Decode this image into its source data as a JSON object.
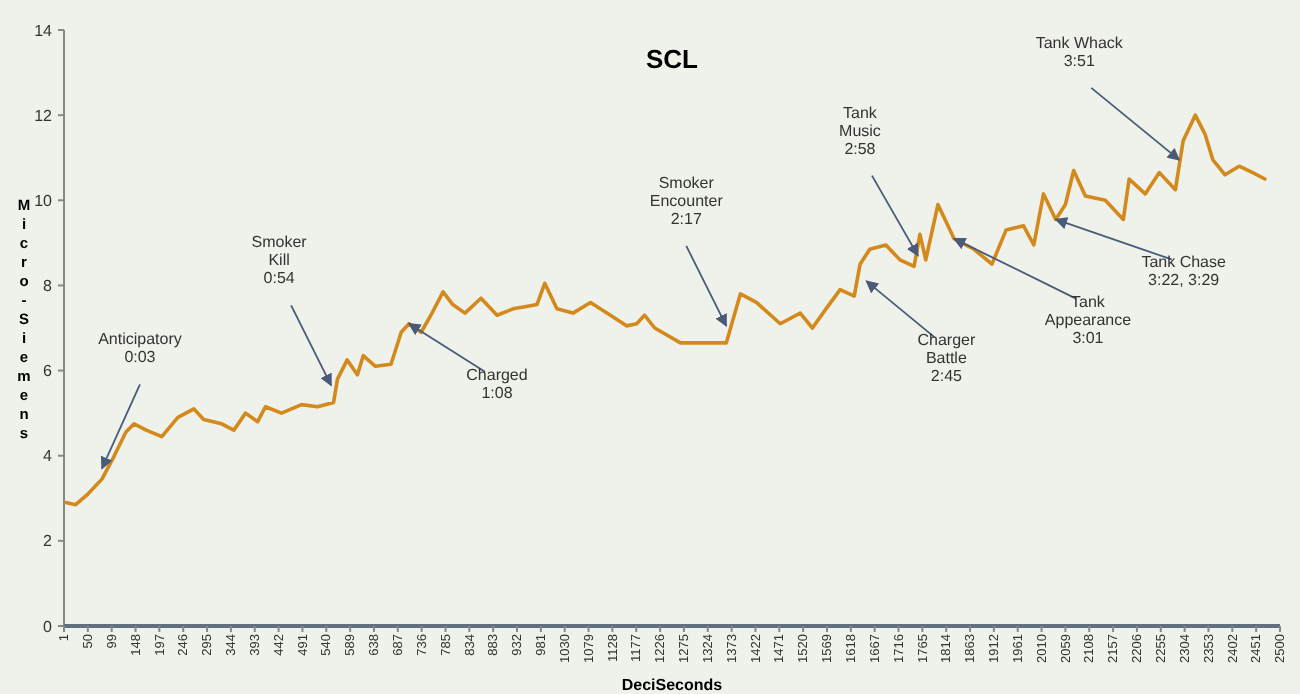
{
  "chart_data": {
    "type": "line",
    "title": "SCL",
    "xlabel": "DeciSeconds",
    "ylabel": "Micro-Siemens",
    "xlim": [
      1,
      2500
    ],
    "xticks": [
      1,
      50,
      99,
      148,
      197,
      246,
      295,
      344,
      393,
      442,
      491,
      540,
      589,
      638,
      687,
      736,
      785,
      834,
      883,
      932,
      981,
      1030,
      1079,
      1128,
      1177,
      1226,
      1275,
      1324,
      1373,
      1422,
      1471,
      1520,
      1569,
      1618,
      1667,
      1716,
      1765,
      1814,
      1863,
      1912,
      1961,
      2010,
      2059,
      2108,
      2157,
      2206,
      2255,
      2304,
      2353,
      2402,
      2451,
      2500
    ],
    "ylim": [
      0,
      14
    ],
    "yticks": [
      0,
      2,
      4,
      6,
      8,
      10,
      12,
      14
    ],
    "grid": false,
    "marker": "none",
    "line_style": "solid",
    "series": [
      {
        "color": "#d4891c",
        "x": [
          5,
          25,
          50,
          79,
          100,
          128,
          145,
          170,
          202,
          235,
          268,
          288,
          325,
          350,
          374,
          399,
          415,
          448,
          489,
          522,
          555,
          563,
          583,
          604,
          616,
          641,
          673,
          694,
          710,
          735,
          755,
          780,
          800,
          825,
          858,
          891,
          924,
          948,
          973,
          989,
          1014,
          1047,
          1083,
          1124,
          1157,
          1178,
          1194,
          1215,
          1268,
          1317,
          1362,
          1391,
          1424,
          1473,
          1514,
          1539,
          1567,
          1596,
          1625,
          1637,
          1657,
          1690,
          1719,
          1748,
          1760,
          1772,
          1797,
          1830,
          1871,
          1908,
          1937,
          1973,
          1994,
          2014,
          2039,
          2059,
          2076,
          2100,
          2141,
          2178,
          2190,
          2223,
          2252,
          2285,
          2301,
          2326,
          2346,
          2362,
          2387,
          2416,
          2444,
          2469
        ],
        "values": [
          2.9,
          2.85,
          3.1,
          3.45,
          3.9,
          4.55,
          4.75,
          4.6,
          4.45,
          4.9,
          5.1,
          4.85,
          4.75,
          4.6,
          5.0,
          4.8,
          5.15,
          5.0,
          5.2,
          5.15,
          5.25,
          5.8,
          6.25,
          5.9,
          6.35,
          6.1,
          6.15,
          6.9,
          7.1,
          6.9,
          7.3,
          7.85,
          7.55,
          7.35,
          7.7,
          7.3,
          7.45,
          7.5,
          7.55,
          8.05,
          7.45,
          7.35,
          7.6,
          7.3,
          7.05,
          7.1,
          7.3,
          7.0,
          6.65,
          6.65,
          6.65,
          7.8,
          7.6,
          7.1,
          7.35,
          7.0,
          7.45,
          7.9,
          7.75,
          8.5,
          8.85,
          8.95,
          8.6,
          8.45,
          9.2,
          8.6,
          9.9,
          9.1,
          8.85,
          8.5,
          9.3,
          9.4,
          8.95,
          10.15,
          9.55,
          9.9,
          10.7,
          10.1,
          10.0,
          9.55,
          10.5,
          10.15,
          10.65,
          10.25,
          11.4,
          12.0,
          11.55,
          10.95,
          10.6,
          10.8,
          10.65,
          10.5
        ]
      }
    ],
    "annotations": [
      {
        "text": "Anticipatory\n0:03",
        "x": 79,
        "y": 3.7
      },
      {
        "text": "Smoker\nKill\n0:54",
        "x": 550,
        "y": 5.65
      },
      {
        "text": "Charged\n1:08",
        "x": 710,
        "y": 7.1
      },
      {
        "text": "Smoker\nEncounter\n2:17",
        "x": 1362,
        "y": 7.05
      },
      {
        "text": "Tank\nMusic\n2:58",
        "x": 1756,
        "y": 8.7
      },
      {
        "text": "Charger\nBattle\n2:45",
        "x": 1650,
        "y": 8.1
      },
      {
        "text": "Tank\nAppearance\n3:01",
        "x": 1830,
        "y": 9.1
      },
      {
        "text": "Tank Chase\n3:22, 3:29",
        "x": 2039,
        "y": 9.55
      },
      {
        "text": "Tank Whack\n3:51",
        "x": 2293,
        "y": 10.95
      }
    ]
  }
}
